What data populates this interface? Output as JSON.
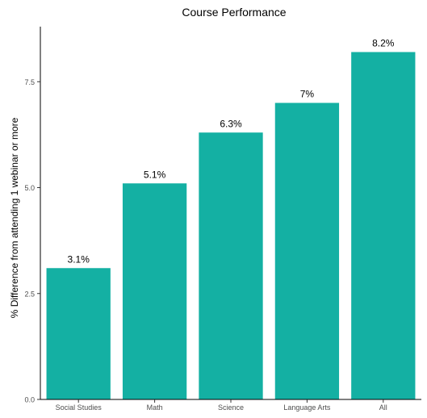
{
  "chart_data": {
    "type": "bar",
    "title": "Course Performance",
    "xlabel": "",
    "ylabel": "% Difference from attending 1 webinar or more",
    "categories": [
      "Social Studies",
      "Math",
      "Science",
      "Language Arts",
      "All"
    ],
    "values": [
      3.1,
      5.1,
      6.3,
      7.0,
      8.2
    ],
    "value_labels": [
      "3.1%",
      "5.1%",
      "6.3%",
      "7%",
      "8.2%"
    ],
    "ylim": [
      0,
      8.8
    ],
    "y_ticks": [
      0,
      2.5,
      5,
      7.5
    ],
    "y_tick_labels": [
      "0.0",
      "2.5",
      "5.0",
      "7.5"
    ],
    "bar_color": "#14B0A3",
    "grid": false,
    "legend": "none"
  }
}
